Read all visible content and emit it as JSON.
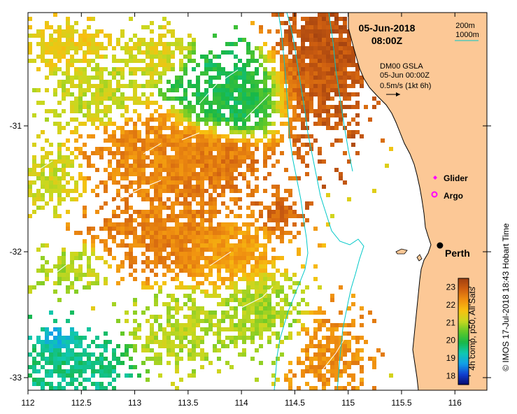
{
  "title": {
    "date": "05-Jun-2018",
    "time": "08:00Z"
  },
  "isobath_legend": {
    "line1": "200m",
    "line2": "1000m",
    "color": "#00c8c8"
  },
  "velocity_legend": {
    "line1": "DM00 GSLA",
    "line2": "05-Jun 00:00Z",
    "line3": "0.5m/s (1kt 6h)"
  },
  "markers": {
    "glider_label": "Glider",
    "argo_label": "Argo",
    "glider_color": "#ff00ff",
    "argo_color": "#ff00ff"
  },
  "city": {
    "name": "Perth",
    "lon": 115.86,
    "lat": -31.95
  },
  "colorbar": {
    "label": "4h comp, p50, All Sats",
    "ticks": [
      "23",
      "22",
      "21",
      "20",
      "19",
      "18"
    ],
    "min": 17.5,
    "max": 23.5,
    "colors": [
      "#08086b",
      "#1040d0",
      "#10a0e8",
      "#10c8b0",
      "#18b848",
      "#60c828",
      "#c8d820",
      "#f8c010",
      "#f09010",
      "#d06010",
      "#a04010"
    ]
  },
  "axes": {
    "x_ticks": [
      "112",
      "112.5",
      "113",
      "113.5",
      "114",
      "114.5",
      "115",
      "115.5",
      "116"
    ],
    "y_ticks": [
      "-31",
      "-32",
      "-33"
    ],
    "lon_range": [
      112,
      116.3
    ],
    "lat_range": [
      -33.1,
      -30.1
    ]
  },
  "credit": "© IMOS 17-Jul-2018 18:43 Hobart Time",
  "colors": {
    "land": "#fcc896",
    "coast": "#000000",
    "isobath": "#00c8c8",
    "ocean": "#ffffff"
  }
}
